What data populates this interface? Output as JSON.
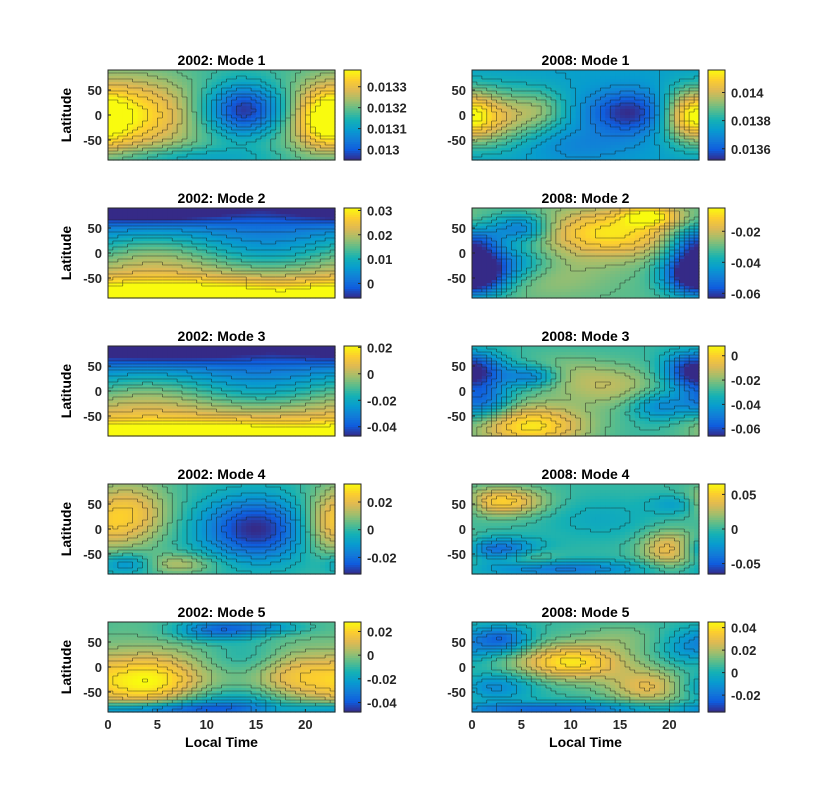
{
  "chart_data": [
    {
      "type": "heatmap",
      "title": "2002: Mode 1",
      "ylabel": "Latitude",
      "xlabel": "",
      "xlim": [
        0,
        23
      ],
      "ylim": [
        -90,
        90
      ],
      "yticks": [
        "50",
        "0",
        "-50"
      ],
      "xticks": [],
      "colorbar_ticks": [
        "0.0133",
        "0.0132",
        "0.0131",
        "0.013"
      ],
      "colorbar_values": [
        0.0133,
        0.0132,
        0.0131,
        0.013
      ],
      "colorbar_range": [
        0.01295,
        0.01338
      ],
      "field": {
        "base": 0.5,
        "blobs": [
          [
            2,
            0,
            5,
            55,
            0.45
          ],
          [
            14,
            10,
            3,
            35,
            -0.5
          ],
          [
            22,
            -10,
            2,
            40,
            0.3
          ],
          [
            8,
            -85,
            6,
            15,
            -0.15
          ]
        ],
        "waves": []
      }
    },
    {
      "type": "heatmap",
      "title": "2008: Mode 1",
      "ylabel": "",
      "xlabel": "",
      "xlim": [
        0,
        23
      ],
      "ylim": [
        -90,
        90
      ],
      "yticks": [
        "50",
        "0",
        "-50"
      ],
      "xticks": [],
      "colorbar_ticks": [
        "0.014",
        "0.0138",
        "0.0136"
      ],
      "colorbar_values": [
        0.014,
        0.0138,
        0.0136
      ],
      "colorbar_range": [
        0.01352,
        0.01416
      ],
      "field": {
        "base": 0.35,
        "blobs": [
          [
            2,
            -5,
            3,
            40,
            0.4
          ],
          [
            16,
            5,
            3,
            30,
            -0.35
          ],
          [
            22,
            0,
            2,
            35,
            0.45
          ],
          [
            7,
            10,
            2,
            30,
            0.2
          ],
          [
            11,
            -60,
            4,
            25,
            -0.1
          ]
        ],
        "waves": []
      }
    },
    {
      "type": "heatmap",
      "title": "2002: Mode 2",
      "ylabel": "Latitude",
      "xlabel": "",
      "xlim": [
        0,
        23
      ],
      "ylim": [
        -90,
        90
      ],
      "yticks": [
        "50",
        "0",
        "-50"
      ],
      "xticks": [],
      "colorbar_ticks": [
        "0.03",
        "0.02",
        "0.01",
        "0"
      ],
      "colorbar_values": [
        0.03,
        0.02,
        0.01,
        0
      ],
      "colorbar_range": [
        -0.006,
        0.031
      ],
      "field": {
        "base": 0.5,
        "blobs": [
          [
            4,
            85,
            5,
            15,
            -0.3
          ],
          [
            6,
            -85,
            8,
            20,
            0.3
          ]
        ],
        "waves": [
          [
            0.55,
            -0.007,
            0.12,
            0.3
          ]
        ]
      }
    },
    {
      "type": "heatmap",
      "title": "2008: Mode 2",
      "ylabel": "",
      "xlabel": "",
      "xlim": [
        0,
        23
      ],
      "ylim": [
        -90,
        90
      ],
      "yticks": [
        "50",
        "0",
        "-50"
      ],
      "xticks": [],
      "colorbar_ticks": [
        "-0.02",
        "-0.04",
        "-0.06"
      ],
      "colorbar_values": [
        -0.02,
        -0.04,
        -0.06
      ],
      "colorbar_range": [
        -0.063,
        -0.005
      ],
      "field": {
        "base": 0.55,
        "blobs": [
          [
            0,
            20,
            2,
            25,
            -0.45
          ],
          [
            1,
            -50,
            2,
            25,
            -0.4
          ],
          [
            5,
            50,
            2,
            20,
            -0.35
          ],
          [
            3,
            -20,
            3,
            25,
            -0.3
          ],
          [
            22,
            -40,
            2,
            30,
            -0.5
          ],
          [
            14,
            40,
            5,
            35,
            0.4
          ],
          [
            18,
            75,
            2,
            15,
            0.35
          ],
          [
            8,
            -50,
            4,
            30,
            0.1
          ]
        ],
        "waves": []
      }
    },
    {
      "type": "heatmap",
      "title": "2002: Mode 3",
      "ylabel": "Latitude",
      "xlabel": "",
      "xlim": [
        0,
        23
      ],
      "ylim": [
        -90,
        90
      ],
      "yticks": [
        "50",
        "0",
        "-50"
      ],
      "xticks": [],
      "colorbar_ticks": [
        "0.02",
        "0",
        "-0.02",
        "-0.04"
      ],
      "colorbar_values": [
        0.02,
        0,
        -0.02,
        -0.04
      ],
      "colorbar_range": [
        -0.047,
        0.021
      ],
      "field": {
        "base": 0.5,
        "blobs": [
          [
            5,
            80,
            6,
            15,
            -0.2
          ],
          [
            8,
            -85,
            8,
            15,
            0.25
          ]
        ],
        "waves": [
          [
            0.6,
            -0.006,
            0.1,
            0.5
          ]
        ]
      }
    },
    {
      "type": "heatmap",
      "title": "2008: Mode 3",
      "ylabel": "",
      "xlabel": "",
      "xlim": [
        0,
        23
      ],
      "ylim": [
        -90,
        90
      ],
      "yticks": [
        "50",
        "0",
        "-50"
      ],
      "xticks": [],
      "colorbar_ticks": [
        "0",
        "-0.02",
        "-0.04",
        "-0.06"
      ],
      "colorbar_values": [
        0,
        -0.02,
        -0.04,
        -0.06
      ],
      "colorbar_range": [
        -0.066,
        0.008
      ],
      "field": {
        "base": 0.5,
        "blobs": [
          [
            6,
            -70,
            4,
            30,
            0.45
          ],
          [
            1,
            -20,
            2,
            25,
            -0.35
          ],
          [
            1,
            40,
            2,
            25,
            -0.25
          ],
          [
            6,
            30,
            2,
            15,
            -0.3
          ],
          [
            22,
            40,
            2,
            25,
            -0.4
          ],
          [
            19,
            -30,
            2,
            20,
            -0.25
          ],
          [
            14,
            10,
            4,
            30,
            0.2
          ],
          [
            9,
            40,
            3,
            25,
            0.1
          ]
        ],
        "waves": []
      }
    },
    {
      "type": "heatmap",
      "title": "2002: Mode 4",
      "ylabel": "Latitude",
      "xlabel": "",
      "xlim": [
        0,
        23
      ],
      "ylim": [
        -90,
        90
      ],
      "yticks": [
        "50",
        "0",
        "-50"
      ],
      "xticks": [],
      "colorbar_ticks": [
        "0.02",
        "0",
        "-0.02"
      ],
      "colorbar_values": [
        0.02,
        0,
        -0.02
      ],
      "colorbar_range": [
        -0.032,
        0.033
      ],
      "field": {
        "base": 0.5,
        "blobs": [
          [
            15,
            0,
            4,
            45,
            -0.5
          ],
          [
            2,
            30,
            3,
            45,
            0.35
          ],
          [
            2,
            -70,
            2,
            15,
            -0.25
          ],
          [
            7,
            -70,
            3,
            15,
            0.2
          ],
          [
            22,
            0,
            2,
            40,
            0.2
          ]
        ],
        "waves": []
      }
    },
    {
      "type": "heatmap",
      "title": "2008: Mode 4",
      "ylabel": "",
      "xlabel": "",
      "xlim": [
        0,
        23
      ],
      "ylim": [
        -90,
        90
      ],
      "yticks": [
        "50",
        "0",
        "-50"
      ],
      "xticks": [],
      "colorbar_ticks": [
        "0.05",
        "0",
        "-0.05"
      ],
      "colorbar_values": [
        0.05,
        0,
        -0.05
      ],
      "colorbar_range": [
        -0.065,
        0.065
      ],
      "field": {
        "base": 0.5,
        "blobs": [
          [
            3,
            55,
            3,
            20,
            0.4
          ],
          [
            3,
            -40,
            3,
            15,
            -0.35
          ],
          [
            9,
            -80,
            6,
            12,
            -0.3
          ],
          [
            20,
            -40,
            2,
            25,
            0.35
          ],
          [
            21,
            50,
            2,
            15,
            -0.2
          ],
          [
            13,
            20,
            4,
            30,
            -0.1
          ],
          [
            6,
            -55,
            2,
            15,
            0.15
          ]
        ],
        "waves": []
      }
    },
    {
      "type": "heatmap",
      "title": "2002: Mode 5",
      "ylabel": "Latitude",
      "xlabel": "Local Time",
      "xlim": [
        0,
        23
      ],
      "ylim": [
        -90,
        90
      ],
      "yticks": [
        "50",
        "0",
        "-50"
      ],
      "xticks": [
        "0",
        "5",
        "10",
        "15",
        "20"
      ],
      "colorbar_ticks": [
        "0.02",
        "0",
        "-0.02",
        "-0.04"
      ],
      "colorbar_values": [
        0.02,
        0,
        -0.02,
        -0.04
      ],
      "colorbar_range": [
        -0.048,
        0.028
      ],
      "field": {
        "base": 0.55,
        "blobs": [
          [
            4,
            -30,
            4,
            40,
            0.45
          ],
          [
            11,
            75,
            3,
            15,
            -0.35
          ],
          [
            12,
            -70,
            5,
            20,
            -0.2
          ],
          [
            6,
            -85,
            8,
            10,
            -0.4
          ],
          [
            19,
            -20,
            3,
            35,
            0.25
          ],
          [
            16,
            80,
            3,
            10,
            -0.2
          ],
          [
            14,
            20,
            3,
            25,
            -0.1
          ]
        ],
        "waves": []
      }
    },
    {
      "type": "heatmap",
      "title": "2008: Mode 5",
      "ylabel": "",
      "xlabel": "Local Time",
      "xlim": [
        0,
        23
      ],
      "ylim": [
        -90,
        90
      ],
      "yticks": [
        "50",
        "0",
        "-50"
      ],
      "xticks": [
        "0",
        "5",
        "10",
        "15",
        "20"
      ],
      "colorbar_ticks": [
        "0.04",
        "0.02",
        "0",
        "-0.02"
      ],
      "colorbar_values": [
        0.04,
        0.02,
        0,
        -0.02
      ],
      "colorbar_range": [
        -0.035,
        0.045
      ],
      "field": {
        "base": 0.5,
        "blobs": [
          [
            10,
            10,
            4,
            25,
            0.45
          ],
          [
            3,
            55,
            2,
            20,
            -0.35
          ],
          [
            18,
            -40,
            3,
            25,
            0.3
          ],
          [
            2,
            -40,
            3,
            20,
            -0.25
          ],
          [
            8,
            -85,
            8,
            10,
            -0.35
          ],
          [
            22,
            40,
            2,
            25,
            -0.2
          ],
          [
            15,
            60,
            3,
            20,
            0.1
          ]
        ],
        "waves": []
      }
    }
  ]
}
